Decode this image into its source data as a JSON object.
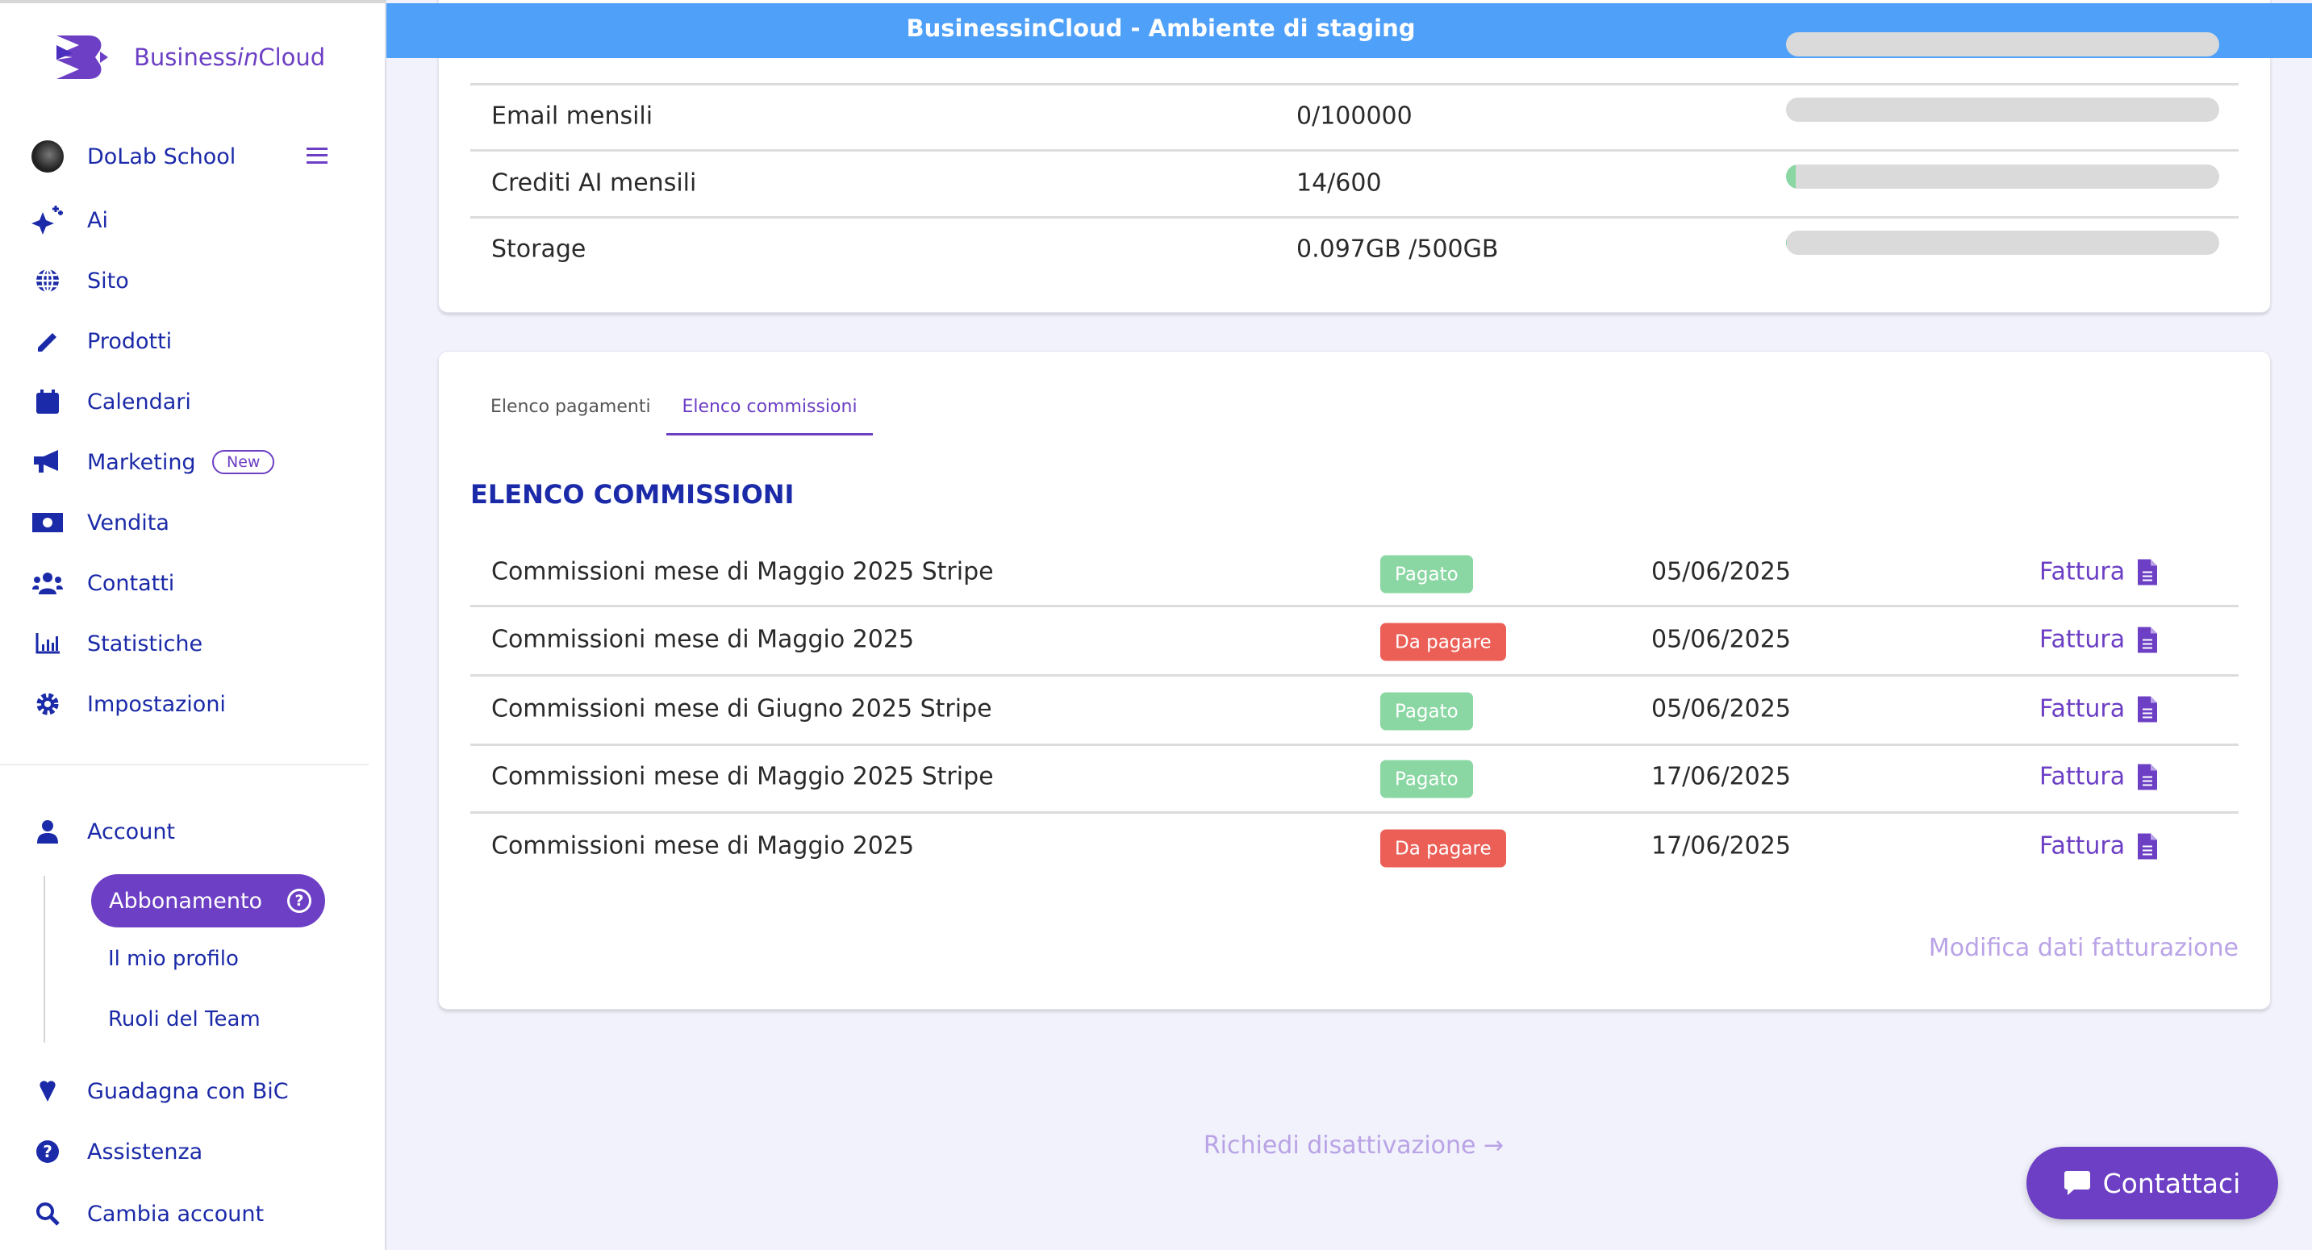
{
  "app": {
    "brand": "BusinessinCloud",
    "brand_parts": [
      "Business",
      "in",
      "Cloud"
    ],
    "banner": "BusinessinCloud - Ambiente di staging"
  },
  "sidebar": {
    "account_name": "DoLab School",
    "items": [
      {
        "label": "Ai",
        "icon": "sparkles-icon"
      },
      {
        "label": "Sito",
        "icon": "globe-icon"
      },
      {
        "label": "Prodotti",
        "icon": "pencil-icon"
      },
      {
        "label": "Calendari",
        "icon": "calendar-icon"
      },
      {
        "label": "Marketing",
        "icon": "megaphone-icon",
        "badge": "New"
      },
      {
        "label": "Vendita",
        "icon": "money-icon"
      },
      {
        "label": "Contatti",
        "icon": "users-icon"
      },
      {
        "label": "Statistiche",
        "icon": "chart-icon"
      },
      {
        "label": "Impostazioni",
        "icon": "gear-icon"
      }
    ],
    "account": {
      "label": "Account",
      "sub": [
        "Abbonamento",
        "Il mio profilo",
        "Ruoli del Team"
      ],
      "active": "Abbonamento"
    },
    "bottom": [
      {
        "label": "Guadagna con BiC",
        "icon": "heart-icon"
      },
      {
        "label": "Assistenza",
        "icon": "question-icon"
      },
      {
        "label": "Cambia account",
        "icon": "search-icon"
      }
    ]
  },
  "usage": [
    {
      "label": "Email mensili",
      "value": "0/100000",
      "fill_percent": 0
    },
    {
      "label": "Crediti AI mensili",
      "value": "14/600",
      "fill_percent": 2.3
    },
    {
      "label": "Storage",
      "value": "0.097GB /500GB",
      "fill_percent": 0.02
    }
  ],
  "tabs": [
    "Elenco pagamenti",
    "Elenco commissioni"
  ],
  "active_tab": "Elenco commissioni",
  "commissions": {
    "title": "ELENCO COMMISSIONI",
    "rows": [
      {
        "desc": "Commissioni mese di Maggio 2025 Stripe",
        "status": "Pagato",
        "date": "05/06/2025",
        "link": "Fattura"
      },
      {
        "desc": "Commissioni mese di Maggio 2025",
        "status": "Da pagare",
        "date": "05/06/2025",
        "link": "Fattura"
      },
      {
        "desc": "Commissioni mese di Giugno 2025 Stripe",
        "status": "Pagato",
        "date": "05/06/2025",
        "link": "Fattura"
      },
      {
        "desc": "Commissioni mese di Maggio 2025 Stripe",
        "status": "Pagato",
        "date": "17/06/2025",
        "link": "Fattura"
      },
      {
        "desc": "Commissioni mese di Maggio 2025",
        "status": "Da pagare",
        "date": "17/06/2025",
        "link": "Fattura"
      }
    ],
    "edit_link": "Modifica dati fatturazione"
  },
  "deactivate": "Richiedi disattivazione →",
  "contact_button": "Contattaci",
  "colors": {
    "primary": "#6c3fc4",
    "nav": "#1b2aa8",
    "banner": "#4fa0f9",
    "paid": "#8ad7a3",
    "unpaid": "#eb5f57"
  }
}
